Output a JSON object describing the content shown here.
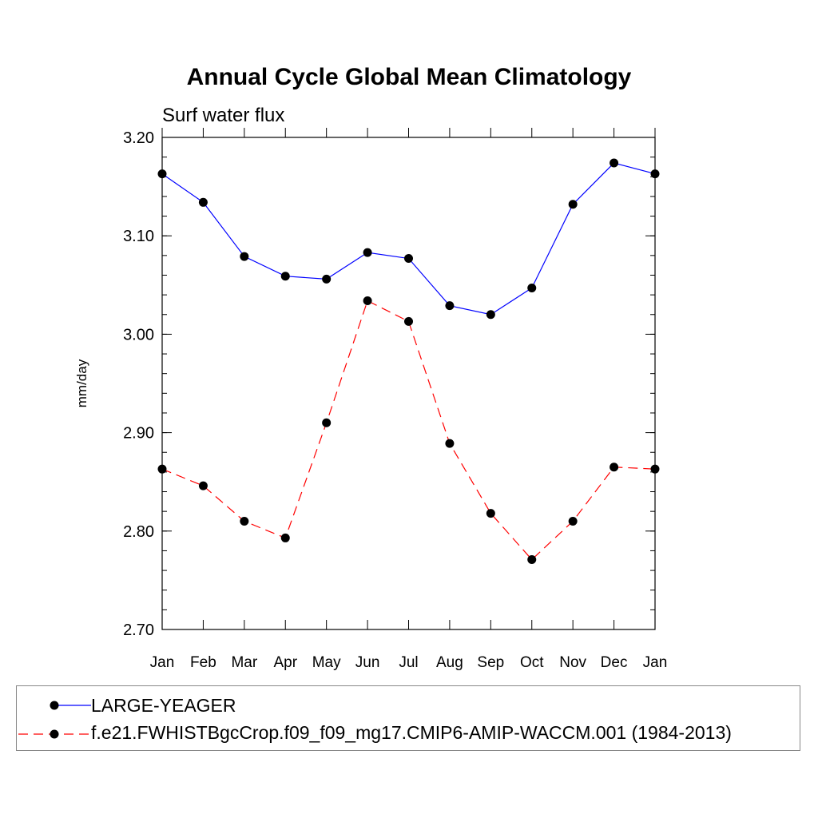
{
  "chart_data": {
    "type": "line",
    "title": "Annual Cycle Global Mean Climatology",
    "subtitle": "Surf water flux",
    "xlabel": "",
    "ylabel": "mm/day",
    "categories": [
      "Jan",
      "Feb",
      "Mar",
      "Apr",
      "May",
      "Jun",
      "Jul",
      "Aug",
      "Sep",
      "Oct",
      "Nov",
      "Dec",
      "Jan"
    ],
    "ylim": [
      2.7,
      3.2
    ],
    "yticks": [
      "2.70",
      "2.80",
      "2.90",
      "3.00",
      "3.10",
      "3.20"
    ],
    "grid": false,
    "legend_position": "bottom",
    "series": [
      {
        "name": "LARGE-YEAGER",
        "color": "#0000ff",
        "line_style": "solid",
        "marker": "filled-circle",
        "values": [
          3.163,
          3.134,
          3.079,
          3.059,
          3.056,
          3.083,
          3.077,
          3.029,
          3.02,
          3.047,
          3.132,
          3.174,
          3.163
        ]
      },
      {
        "name": "f.e21.FWHISTBgcCrop.f09_f09_mg17.CMIP6-AMIP-WACCM.001 (1984-2013)",
        "color": "#ff0000",
        "line_style": "dashed",
        "marker": "filled-circle",
        "values": [
          2.863,
          2.846,
          2.81,
          2.793,
          2.91,
          3.034,
          3.013,
          2.889,
          2.818,
          2.771,
          2.81,
          2.865,
          2.863
        ]
      }
    ]
  }
}
